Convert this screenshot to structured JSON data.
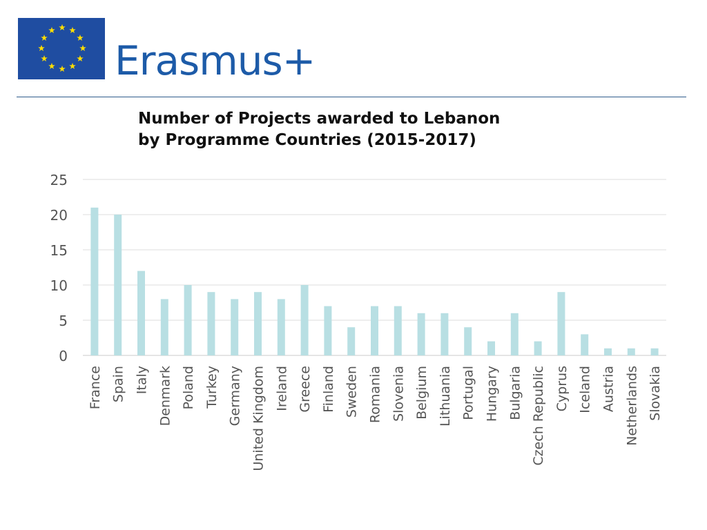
{
  "header": {
    "logo_text": "Erasmus+",
    "flag_color": "#1f4da1",
    "star_color": "#ffdd00",
    "text_color": "#1d5ba8"
  },
  "chart_data": {
    "type": "bar",
    "title_lines": [
      "Number of Projects awarded to Lebanon",
      "by Programme Countries (2015-2017)"
    ],
    "xlabel": "",
    "ylabel": "",
    "ylim": [
      0,
      25
    ],
    "yticks": [
      "0",
      "5",
      "10",
      "15",
      "20",
      "25"
    ],
    "grid": true,
    "legend": "none",
    "bar_color": "#b8dfe3",
    "categories": [
      "France",
      "Spain",
      "Italy",
      "Denmark",
      "Poland",
      "Turkey",
      "Germany",
      "United Kingdom",
      "Ireland",
      "Greece",
      "Finland",
      "Sweden",
      "Romania",
      "Slovenia",
      "Belgium",
      "Lithuania",
      "Portugal",
      "Hungary",
      "Bulgaria",
      "Czech Republic",
      "Cyprus",
      "Iceland",
      "Austria",
      "Netherlands",
      "Slovakia"
    ],
    "values": [
      21,
      20,
      12,
      8,
      10,
      9,
      8,
      9,
      8,
      10,
      7,
      4,
      7,
      7,
      6,
      6,
      4,
      2,
      6,
      2,
      9,
      3,
      1,
      1,
      1
    ]
  }
}
